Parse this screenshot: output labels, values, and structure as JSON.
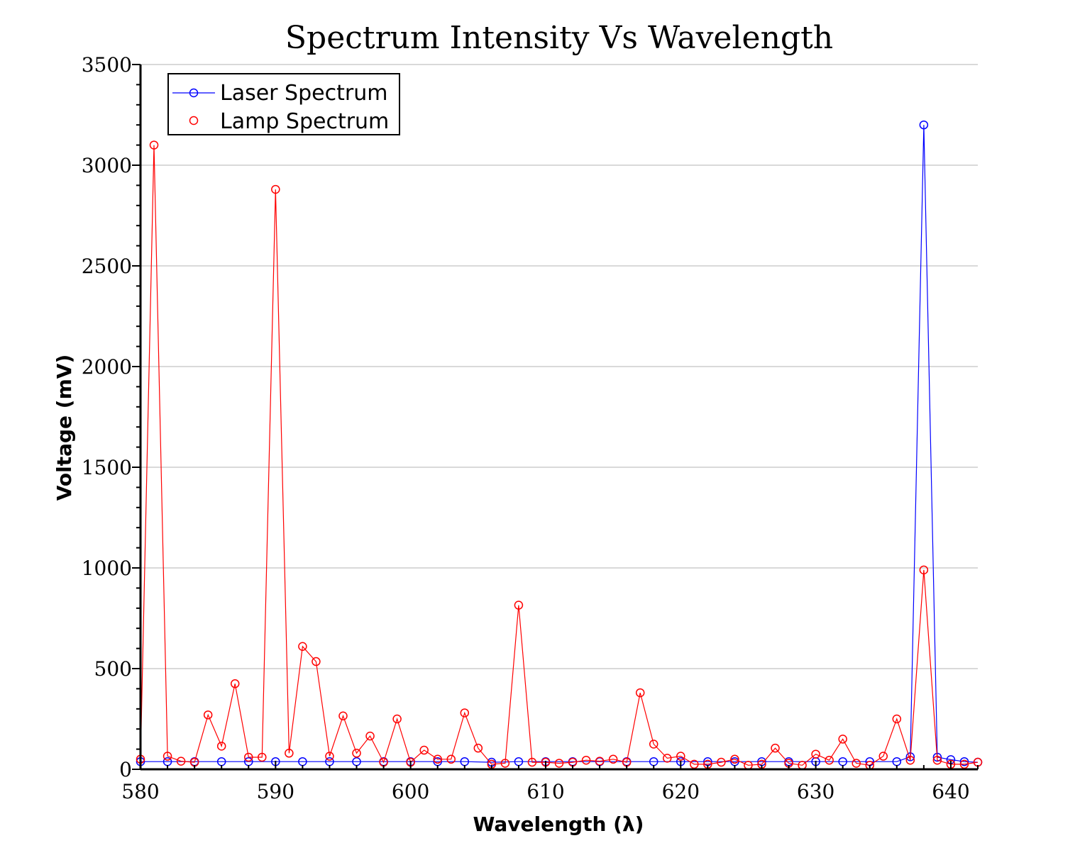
{
  "chart_data": {
    "type": "line",
    "title": "Spectrum Intensity Vs Wavelength",
    "xlabel": "Wavelength (λ)",
    "ylabel": "Voltage (mV)",
    "xlim": [
      580,
      642
    ],
    "ylim": [
      0,
      3500
    ],
    "x_ticks": [
      "580",
      "590",
      "600",
      "610",
      "620",
      "630",
      "640"
    ],
    "y_ticks": [
      "0",
      "500",
      "1000",
      "1500",
      "2000",
      "2500",
      "3000",
      "3500"
    ],
    "grid": "horizontal",
    "legend_position": "top-left",
    "series": [
      {
        "name": "Laser Spectrum",
        "color": "#0000ff",
        "marker": "circle",
        "line": true,
        "x": [
          580,
          582,
          584,
          586,
          588,
          590,
          592,
          594,
          596,
          598,
          600,
          602,
          604,
          606,
          608,
          610,
          612,
          614,
          616,
          618,
          620,
          622,
          624,
          626,
          628,
          630,
          632,
          634,
          636,
          637,
          638,
          639,
          640,
          641,
          642
        ],
        "y": [
          38,
          38,
          38,
          38,
          38,
          38,
          38,
          38,
          38,
          38,
          38,
          38,
          38,
          35,
          38,
          38,
          38,
          38,
          38,
          38,
          38,
          38,
          38,
          38,
          38,
          38,
          38,
          38,
          38,
          62,
          3200,
          60,
          48,
          38,
          35
        ]
      },
      {
        "name": "Lamp Spectrum",
        "color": "#ff0000",
        "marker": "circle",
        "line": false,
        "x": [
          580,
          581,
          582,
          583,
          584,
          585,
          586,
          587,
          588,
          589,
          590,
          591,
          592,
          593,
          594,
          595,
          596,
          597,
          598,
          599,
          600,
          601,
          602,
          603,
          604,
          605,
          606,
          607,
          608,
          609,
          610,
          611,
          612,
          613,
          614,
          615,
          616,
          617,
          618,
          619,
          620,
          621,
          622,
          623,
          624,
          625,
          626,
          627,
          628,
          629,
          630,
          631,
          632,
          633,
          634,
          635,
          636,
          637,
          638,
          639,
          640,
          641,
          642
        ],
        "y": [
          50,
          3100,
          65,
          40,
          35,
          270,
          115,
          425,
          60,
          60,
          2880,
          80,
          610,
          535,
          65,
          265,
          80,
          165,
          35,
          250,
          35,
          95,
          50,
          50,
          280,
          105,
          25,
          30,
          815,
          35,
          35,
          30,
          35,
          45,
          40,
          50,
          35,
          380,
          125,
          55,
          65,
          25,
          25,
          35,
          50,
          20,
          25,
          105,
          30,
          20,
          75,
          45,
          150,
          30,
          20,
          65,
          250,
          45,
          990,
          45,
          25,
          25,
          35
        ]
      }
    ]
  }
}
